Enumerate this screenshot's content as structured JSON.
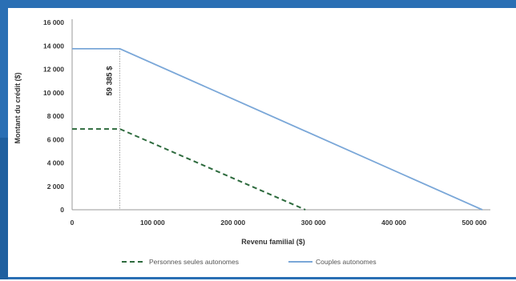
{
  "chart_data": {
    "type": "line",
    "title": "",
    "xlabel": "Revenu familial ($)",
    "ylabel": "Montant du crédit ($)",
    "xlim": [
      0,
      520000
    ],
    "ylim": [
      0,
      16000
    ],
    "x_ticks": [
      0,
      100000,
      200000,
      300000,
      400000,
      500000
    ],
    "x_tick_labels": [
      "0",
      "100 000",
      "200 000",
      "300 000",
      "400 000",
      "500 000"
    ],
    "y_ticks": [
      0,
      2000,
      4000,
      6000,
      8000,
      10000,
      12000,
      14000,
      16000
    ],
    "y_tick_labels": [
      "0",
      "2 000",
      "4 000",
      "6 000",
      "8 000",
      "10 000",
      "12 000",
      "14 000",
      "16 000"
    ],
    "grid": false,
    "legend_position": "bottom",
    "series": [
      {
        "name": "Personnes seules autonomes",
        "style": "dashed",
        "color": "#2e6b3e",
        "x": [
          0,
          59385,
          290000
        ],
        "y": [
          6900,
          6900,
          0
        ]
      },
      {
        "name": "Couples autonomes",
        "style": "solid",
        "color": "#7aa7d8",
        "x": [
          0,
          59385,
          510000
        ],
        "y": [
          13750,
          13750,
          0
        ]
      }
    ],
    "annotations": [
      {
        "text": "59 385 $",
        "x": 59385
      }
    ]
  },
  "colors": {
    "frame": "#2a6fb4",
    "axis": "#999999",
    "guide": "#888888"
  }
}
